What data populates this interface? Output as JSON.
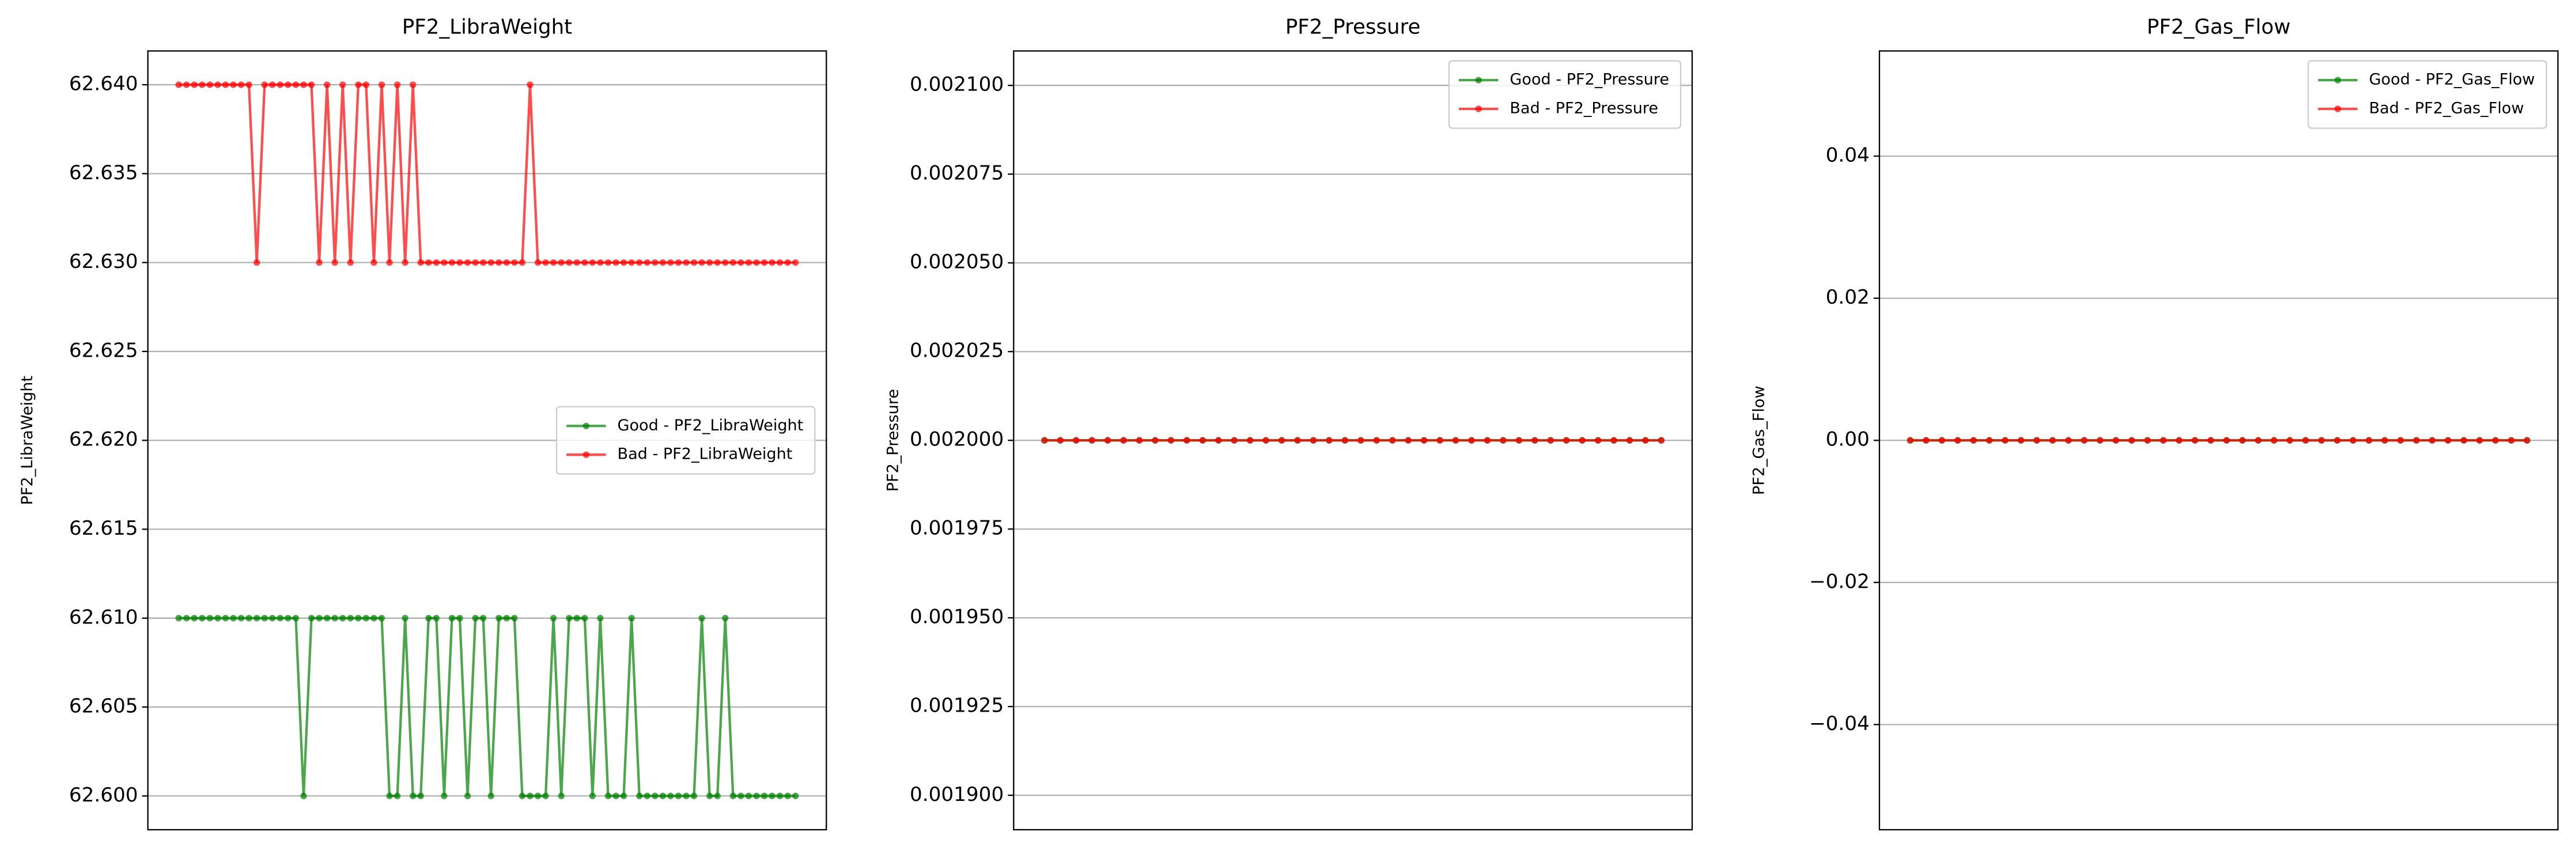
{
  "chart_data": [
    {
      "type": "line",
      "title": "PF2_LibraWeight",
      "ylabel": "PF2_LibraWeight",
      "x": [
        0,
        1,
        2,
        3,
        4,
        5,
        6,
        7,
        8,
        9,
        10,
        11,
        12,
        13,
        14,
        15,
        16,
        17,
        18,
        19,
        20,
        21,
        22,
        23,
        24,
        25,
        26,
        27,
        28,
        29,
        30,
        31,
        32,
        33,
        34,
        35,
        36,
        37,
        38,
        39,
        40,
        41,
        42,
        43,
        44,
        45,
        46,
        47,
        48,
        49,
        50,
        51,
        52,
        53,
        54,
        55,
        56,
        57,
        58,
        59,
        60,
        61,
        62,
        63,
        64,
        65,
        66,
        67,
        68,
        69,
        70,
        71,
        72,
        73,
        74,
        75,
        76,
        77,
        78,
        79
      ],
      "series": [
        {
          "name": "Good - PF2_LibraWeight",
          "color": "#008000",
          "values": [
            62.61,
            62.61,
            62.61,
            62.61,
            62.61,
            62.61,
            62.61,
            62.61,
            62.61,
            62.61,
            62.61,
            62.61,
            62.61,
            62.61,
            62.61,
            62.61,
            62.6,
            62.61,
            62.61,
            62.61,
            62.61,
            62.61,
            62.61,
            62.61,
            62.61,
            62.61,
            62.61,
            62.6,
            62.6,
            62.61,
            62.6,
            62.6,
            62.61,
            62.61,
            62.6,
            62.61,
            62.61,
            62.6,
            62.61,
            62.61,
            62.6,
            62.61,
            62.61,
            62.61,
            62.6,
            62.6,
            62.6,
            62.6,
            62.61,
            62.6,
            62.61,
            62.61,
            62.61,
            62.6,
            62.61,
            62.6,
            62.6,
            62.6,
            62.61,
            62.6,
            62.6,
            62.6,
            62.6,
            62.6,
            62.6,
            62.6,
            62.6,
            62.61,
            62.6,
            62.6,
            62.61,
            62.6,
            62.6,
            62.6,
            62.6,
            62.6,
            62.6,
            62.6,
            62.6,
            62.6
          ]
        },
        {
          "name": "Bad - PF2_LibraWeight",
          "color": "#ff0000",
          "values": [
            62.64,
            62.64,
            62.64,
            62.64,
            62.64,
            62.64,
            62.64,
            62.64,
            62.64,
            62.64,
            62.63,
            62.64,
            62.64,
            62.64,
            62.64,
            62.64,
            62.64,
            62.64,
            62.63,
            62.64,
            62.63,
            62.64,
            62.63,
            62.64,
            62.64,
            62.63,
            62.64,
            62.63,
            62.64,
            62.63,
            62.64,
            62.63,
            62.63,
            62.63,
            62.63,
            62.63,
            62.63,
            62.63,
            62.63,
            62.63,
            62.63,
            62.63,
            62.63,
            62.63,
            62.63,
            62.64,
            62.63,
            62.63,
            62.63,
            62.63,
            62.63,
            62.63,
            62.63,
            62.63,
            62.63,
            62.63,
            62.63,
            62.63,
            62.63,
            62.63,
            62.63,
            62.63,
            62.63,
            62.63,
            62.63,
            62.63,
            62.63,
            62.63,
            62.63,
            62.63,
            62.63,
            62.63,
            62.63,
            62.63,
            62.63,
            62.63,
            62.63,
            62.63,
            62.63,
            62.63
          ]
        }
      ],
      "xlim": [
        -3.95,
        82.95
      ],
      "ylim": [
        62.5981,
        62.6419
      ],
      "yticks": [
        {
          "value": 62.6,
          "label": "62.600"
        },
        {
          "value": 62.605,
          "label": "62.605"
        },
        {
          "value": 62.61,
          "label": "62.610"
        },
        {
          "value": 62.615,
          "label": "62.615"
        },
        {
          "value": 62.62,
          "label": "62.620"
        },
        {
          "value": 62.625,
          "label": "62.625"
        },
        {
          "value": 62.63,
          "label": "62.630"
        },
        {
          "value": 62.635,
          "label": "62.635"
        },
        {
          "value": 62.64,
          "label": "62.640"
        }
      ],
      "grid": true,
      "legend": "center right"
    },
    {
      "type": "line",
      "title": "PF2_Pressure",
      "ylabel": "PF2_Pressure",
      "x": [
        0,
        1,
        2,
        3,
        4,
        5,
        6,
        7,
        8,
        9,
        10,
        11,
        12,
        13,
        14,
        15,
        16,
        17,
        18,
        19,
        20,
        21,
        22,
        23,
        24,
        25,
        26,
        27,
        28,
        29,
        30,
        31,
        32,
        33,
        34,
        35,
        36,
        37,
        38,
        39
      ],
      "series": [
        {
          "name": "Good - PF2_Pressure",
          "color": "#008000",
          "values": [
            0.002,
            0.002,
            0.002,
            0.002,
            0.002,
            0.002,
            0.002,
            0.002,
            0.002,
            0.002,
            0.002,
            0.002,
            0.002,
            0.002,
            0.002,
            0.002,
            0.002,
            0.002,
            0.002,
            0.002,
            0.002,
            0.002,
            0.002,
            0.002,
            0.002,
            0.002,
            0.002,
            0.002,
            0.002,
            0.002,
            0.002,
            0.002,
            0.002,
            0.002,
            0.002,
            0.002,
            0.002,
            0.002,
            0.002,
            0.002
          ]
        },
        {
          "name": "Bad - PF2_Pressure",
          "color": "#ff0000",
          "values": [
            0.002,
            0.002,
            0.002,
            0.002,
            0.002,
            0.002,
            0.002,
            0.002,
            0.002,
            0.002,
            0.002,
            0.002,
            0.002,
            0.002,
            0.002,
            0.002,
            0.002,
            0.002,
            0.002,
            0.002,
            0.002,
            0.002,
            0.002,
            0.002,
            0.002,
            0.002,
            0.002,
            0.002,
            0.002,
            0.002,
            0.002,
            0.002,
            0.002,
            0.002,
            0.002,
            0.002,
            0.002,
            0.002,
            0.002,
            0.002
          ]
        }
      ],
      "xlim": [
        -1.95,
        40.95
      ],
      "ylim": [
        0.0018903,
        0.0021097
      ],
      "yticks": [
        {
          "value": 0.0019,
          "label": "0.001900"
        },
        {
          "value": 0.001925,
          "label": "0.001925"
        },
        {
          "value": 0.00195,
          "label": "0.001950"
        },
        {
          "value": 0.001975,
          "label": "0.001975"
        },
        {
          "value": 0.002,
          "label": "0.002000"
        },
        {
          "value": 0.002025,
          "label": "0.002025"
        },
        {
          "value": 0.00205,
          "label": "0.002050"
        },
        {
          "value": 0.002075,
          "label": "0.002075"
        },
        {
          "value": 0.0021,
          "label": "0.002100"
        }
      ],
      "grid": true,
      "legend": "upper right"
    },
    {
      "type": "line",
      "title": "PF2_Gas_Flow",
      "ylabel": "PF2_Gas_Flow",
      "x": [
        0,
        1,
        2,
        3,
        4,
        5,
        6,
        7,
        8,
        9,
        10,
        11,
        12,
        13,
        14,
        15,
        16,
        17,
        18,
        19,
        20,
        21,
        22,
        23,
        24,
        25,
        26,
        27,
        28,
        29,
        30,
        31,
        32,
        33,
        34,
        35,
        36,
        37,
        38,
        39
      ],
      "series": [
        {
          "name": "Good - PF2_Gas_Flow",
          "color": "#008000",
          "values": [
            0,
            0,
            0,
            0,
            0,
            0,
            0,
            0,
            0,
            0,
            0,
            0,
            0,
            0,
            0,
            0,
            0,
            0,
            0,
            0,
            0,
            0,
            0,
            0,
            0,
            0,
            0,
            0,
            0,
            0,
            0,
            0,
            0,
            0,
            0,
            0,
            0,
            0,
            0,
            0
          ]
        },
        {
          "name": "Bad - PF2_Gas_Flow",
          "color": "#ff0000",
          "values": [
            0,
            0,
            0,
            0,
            0,
            0,
            0,
            0,
            0,
            0,
            0,
            0,
            0,
            0,
            0,
            0,
            0,
            0,
            0,
            0,
            0,
            0,
            0,
            0,
            0,
            0,
            0,
            0,
            0,
            0,
            0,
            0,
            0,
            0,
            0,
            0,
            0,
            0,
            0,
            0
          ]
        }
      ],
      "xlim": [
        -1.95,
        40.95
      ],
      "ylim": [
        -0.0548,
        0.0548
      ],
      "yticks": [
        {
          "value": -0.04,
          "label": "−0.04"
        },
        {
          "value": -0.02,
          "label": "−0.02"
        },
        {
          "value": 0,
          "label": "0.00"
        },
        0.02,
        0.04
      ],
      "grid": true,
      "legend": "upper right"
    }
  ]
}
